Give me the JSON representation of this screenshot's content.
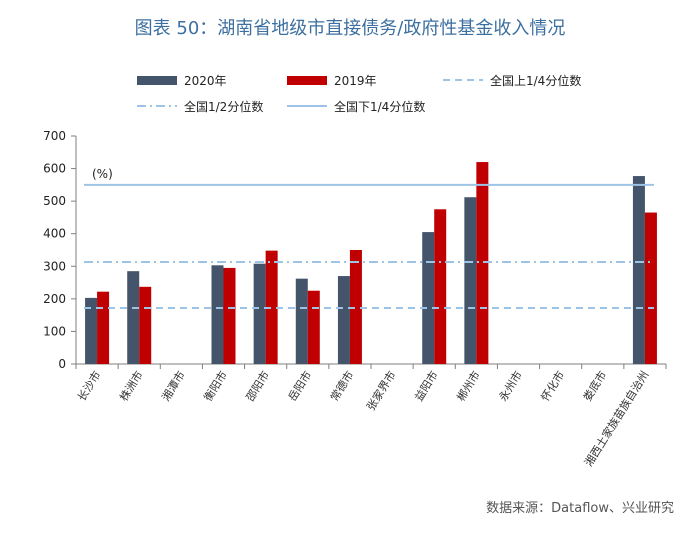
{
  "title": "图表 50：湖南省地级市直接债务/政府性基金收入情况",
  "source": "数据来源：Dataflow、兴业研究",
  "colors": {
    "2020": "#44546a",
    "2019": "#c00000",
    "ref": "#9dc3e6",
    "axis": "#7f7f7f"
  },
  "chart_data": {
    "type": "bar",
    "unit_label": "(%)",
    "categories": [
      "长沙市",
      "株洲市",
      "湘潭市",
      "衡阳市",
      "邵阳市",
      "岳阳市",
      "常德市",
      "张家界市",
      "益阳市",
      "郴州市",
      "永州市",
      "怀化市",
      "娄底市",
      "湘西土家族苗族自治州"
    ],
    "series": [
      {
        "name": "2020年",
        "values": [
          203,
          285,
          null,
          303,
          308,
          262,
          270,
          null,
          405,
          512,
          null,
          null,
          null,
          577
        ]
      },
      {
        "name": "2019年",
        "values": [
          222,
          237,
          null,
          295,
          348,
          225,
          350,
          null,
          475,
          620,
          null,
          null,
          null,
          465
        ]
      }
    ],
    "reference_lines": [
      {
        "name": "全国上1/4分位数",
        "value": 172,
        "style": "dashed"
      },
      {
        "name": "全国1/2分位数",
        "value": 313,
        "style": "dashdot"
      },
      {
        "name": "全国下1/4分位数",
        "value": 550,
        "style": "solid"
      }
    ],
    "yticks": [
      "0",
      "100",
      "200",
      "300",
      "400",
      "500",
      "600",
      "700"
    ],
    "ylim": [
      0,
      700
    ],
    "legend_position": "top"
  }
}
